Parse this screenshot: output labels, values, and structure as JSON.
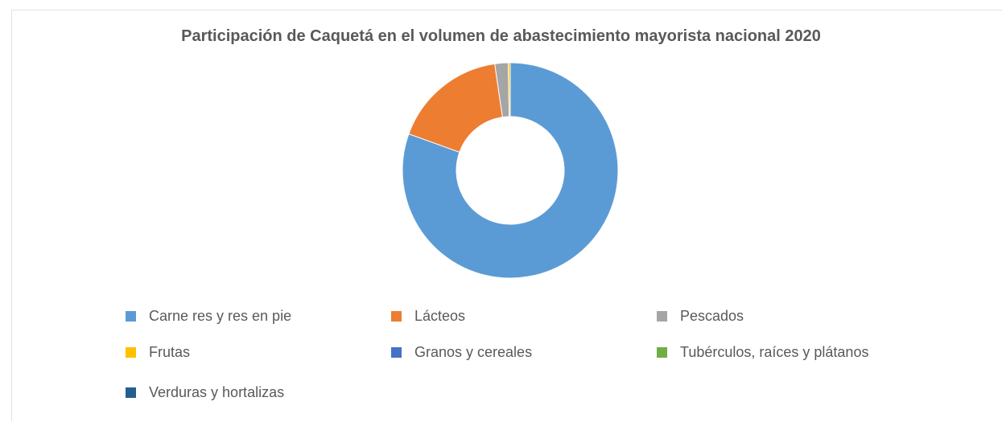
{
  "chart_data": {
    "type": "pie",
    "variant": "donut",
    "title": "Participación de Caquetá en el volumen de abastecimiento mayorista nacional 2020",
    "categories": [
      "Carne res y res en pie",
      "Lácteos",
      "Pescados",
      "Frutas",
      "Granos y cereales",
      "Tubérculos, raíces y plátanos",
      "Verduras y hortalizas"
    ],
    "values": [
      80.5,
      17.2,
      2.0,
      0.3,
      0.0,
      0.0,
      0.0
    ],
    "value_unit": "percent (estimated from slice angles)",
    "colors": [
      "#5B9BD5",
      "#ED7D31",
      "#A5A5A5",
      "#FFC000",
      "#4472C4",
      "#70AD47",
      "#255E91"
    ],
    "legend_position": "bottom",
    "start_angle_deg": 0,
    "direction": "clockwise"
  }
}
